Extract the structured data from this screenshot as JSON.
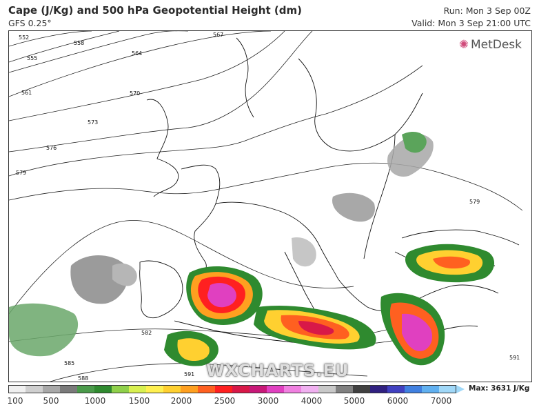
{
  "header": {
    "title": "Cape (J/Kg) and 500 hPa Geopotential Height (dm)",
    "model": "GFS 0.25°",
    "run": "Run: Mon 3 Sep 00Z",
    "valid": "Valid: Mon 3 Sep 21:00 UTC"
  },
  "brand": "MetDesk",
  "watermark": "WXCHARTS.EU",
  "contour_labels": [
    "552",
    "555",
    "558",
    "561",
    "564",
    "567",
    "570",
    "573",
    "576",
    "579",
    "579",
    "582",
    "585",
    "588",
    "591",
    "591"
  ],
  "colorbar": {
    "ticks": [
      "100",
      "500",
      "1000",
      "1500",
      "2000",
      "2500",
      "3000",
      "4000",
      "5000",
      "6000",
      "7000"
    ],
    "colors": [
      "#f0f0f0",
      "#cfcfcf",
      "#a8a8a8",
      "#7a7a7a",
      "#4a9a4a",
      "#2f8a2f",
      "#8fd04a",
      "#d8f050",
      "#fff050",
      "#ffd030",
      "#ffa020",
      "#ff6020",
      "#ff2020",
      "#d81848",
      "#c81878",
      "#e040c0",
      "#f080e0",
      "#f0b0f0",
      "#c8c8c8",
      "#808080",
      "#404040",
      "#302080",
      "#4040c0",
      "#4080e0",
      "#60b0f0",
      "#a0d8f8"
    ],
    "max_label": "Max: 3631 J/Kg"
  }
}
